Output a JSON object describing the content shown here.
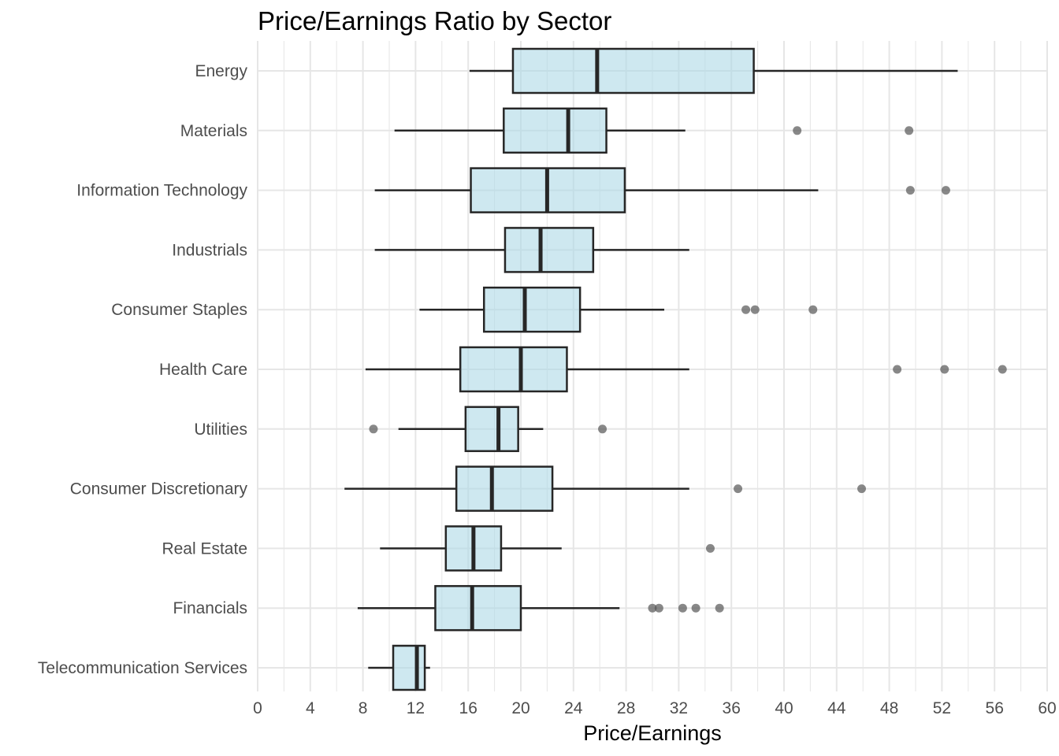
{
  "chart_data": {
    "type": "boxplot",
    "title": "Price/Earnings Ratio by Sector",
    "xlabel": "Price/Earnings",
    "ylabel": "",
    "xlim": [
      0,
      60
    ],
    "x_ticks": [
      0,
      4,
      8,
      12,
      16,
      20,
      24,
      28,
      32,
      36,
      40,
      44,
      48,
      52,
      56,
      60
    ],
    "grid": true,
    "colors": {
      "box_fill": "#add8e6",
      "box_stroke": "#262626",
      "outlier": "#555555",
      "grid": "#e6e6e6"
    },
    "categories": [
      "Energy",
      "Materials",
      "Information Technology",
      "Industrials",
      "Consumer Staples",
      "Health Care",
      "Utilities",
      "Consumer Discretionary",
      "Real Estate",
      "Financials",
      "Telecommunication Services"
    ],
    "boxes": [
      {
        "sector": "Energy",
        "whisker_low": 16.1,
        "q1": 19.4,
        "median": 25.8,
        "q3": 37.7,
        "whisker_high": 53.2,
        "outliers": []
      },
      {
        "sector": "Materials",
        "whisker_low": 10.4,
        "q1": 18.7,
        "median": 23.6,
        "q3": 26.5,
        "whisker_high": 32.5,
        "outliers": [
          41.0,
          49.5
        ]
      },
      {
        "sector": "Information Technology",
        "whisker_low": 8.9,
        "q1": 16.2,
        "median": 22.0,
        "q3": 27.9,
        "whisker_high": 42.6,
        "outliers": [
          49.6,
          52.3
        ]
      },
      {
        "sector": "Industrials",
        "whisker_low": 8.9,
        "q1": 18.8,
        "median": 21.5,
        "q3": 25.5,
        "whisker_high": 32.8,
        "outliers": []
      },
      {
        "sector": "Consumer Staples",
        "whisker_low": 12.3,
        "q1": 17.2,
        "median": 20.3,
        "q3": 24.5,
        "whisker_high": 30.9,
        "outliers": [
          37.1,
          37.8,
          42.2
        ]
      },
      {
        "sector": "Health Care",
        "whisker_low": 8.2,
        "q1": 15.4,
        "median": 20.0,
        "q3": 23.5,
        "whisker_high": 32.8,
        "outliers": [
          48.6,
          52.2,
          56.6
        ]
      },
      {
        "sector": "Utilities",
        "whisker_low": 10.7,
        "q1": 15.8,
        "median": 18.3,
        "q3": 19.8,
        "whisker_high": 21.7,
        "outliers": [
          8.8,
          26.2
        ]
      },
      {
        "sector": "Consumer Discretionary",
        "whisker_low": 6.6,
        "q1": 15.1,
        "median": 17.8,
        "q3": 22.4,
        "whisker_high": 32.8,
        "outliers": [
          36.5,
          45.9
        ]
      },
      {
        "sector": "Real Estate",
        "whisker_low": 9.3,
        "q1": 14.3,
        "median": 16.4,
        "q3": 18.5,
        "whisker_high": 23.1,
        "outliers": [
          34.4
        ]
      },
      {
        "sector": "Financials",
        "whisker_low": 7.6,
        "q1": 13.5,
        "median": 16.3,
        "q3": 20.0,
        "whisker_high": 27.5,
        "outliers": [
          30.0,
          30.5,
          32.3,
          33.3,
          35.1
        ]
      },
      {
        "sector": "Telecommunication Services",
        "whisker_low": 8.4,
        "q1": 10.3,
        "median": 12.1,
        "q3": 12.7,
        "whisker_high": 13.1,
        "outliers": []
      }
    ]
  }
}
